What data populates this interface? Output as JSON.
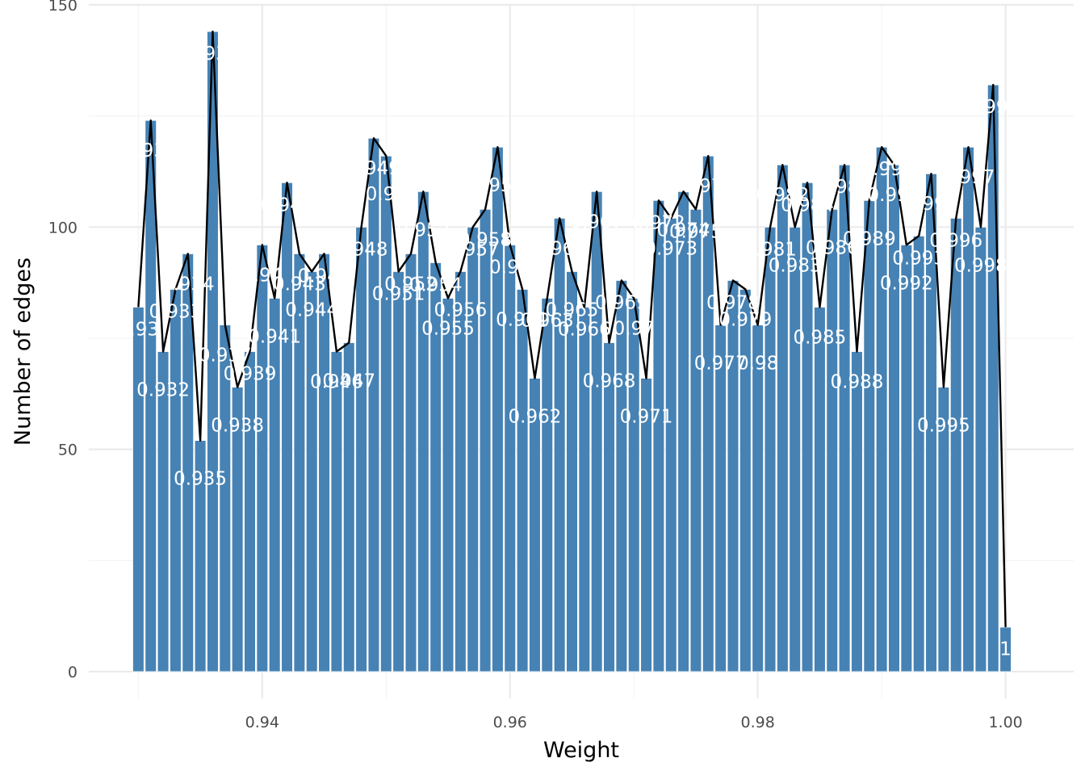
{
  "chart_data": {
    "type": "bar",
    "xlabel": "Weight",
    "ylabel": "Number of edges",
    "xlim": [
      0.926,
      1.0055
    ],
    "ylim": [
      -6,
      150
    ],
    "x_ticks": [
      0.94,
      0.96,
      0.98,
      1.0
    ],
    "x_tick_labels": [
      "0.94",
      "0.96",
      "0.98",
      "1.00"
    ],
    "y_ticks": [
      0,
      50,
      100,
      150
    ],
    "y_tick_labels": [
      "0",
      "50",
      "100",
      "150"
    ],
    "bar_color": "#4682B4",
    "line_color": "#000000",
    "grid": true,
    "legend": "none",
    "x": [
      0.93,
      0.931,
      0.932,
      0.933,
      0.934,
      0.935,
      0.936,
      0.937,
      0.938,
      0.939,
      0.94,
      0.941,
      0.942,
      0.943,
      0.944,
      0.945,
      0.946,
      0.947,
      0.948,
      0.949,
      0.95,
      0.951,
      0.952,
      0.953,
      0.954,
      0.955,
      0.956,
      0.957,
      0.958,
      0.959,
      0.96,
      0.961,
      0.962,
      0.963,
      0.964,
      0.965,
      0.966,
      0.967,
      0.968,
      0.969,
      0.97,
      0.971,
      0.972,
      0.973,
      0.974,
      0.975,
      0.976,
      0.977,
      0.978,
      0.979,
      0.98,
      0.981,
      0.982,
      0.983,
      0.984,
      0.985,
      0.986,
      0.987,
      0.988,
      0.989,
      0.99,
      0.991,
      0.992,
      0.993,
      0.994,
      0.995,
      0.996,
      0.997,
      0.998,
      0.999,
      1.0
    ],
    "values": [
      82,
      124,
      72,
      86,
      94,
      52,
      144,
      78,
      64,
      72,
      96,
      84,
      110,
      94,
      90,
      94,
      72,
      74,
      100,
      120,
      116,
      90,
      94,
      108,
      92,
      84,
      90,
      100,
      104,
      118,
      96,
      86,
      66,
      84,
      102,
      90,
      82,
      108,
      74,
      88,
      84,
      66,
      106,
      102,
      108,
      104,
      116,
      78,
      88,
      86,
      78,
      100,
      114,
      100,
      110,
      82,
      104,
      114,
      72,
      106,
      118,
      114,
      96,
      98,
      112,
      64,
      102,
      118,
      100,
      132,
      10
    ],
    "labels": [
      "0.93",
      "0.931",
      "0.932",
      "0.933",
      "0.934",
      "0.935",
      "0.936",
      "0.937",
      "0.938",
      "0.939",
      "0.94",
      "0.941",
      "0.942",
      "0.943",
      "0.944",
      "0.945",
      "0.946",
      "0.947",
      "0.948",
      "0.949",
      "0.95",
      "0.951",
      "0.952",
      "0.953",
      "0.954",
      "0.955",
      "0.956",
      "0.957",
      "0.958",
      "0.959",
      "0.96",
      "0.961",
      "0.962",
      "0.963",
      "0.964",
      "0.965",
      "0.966",
      "0.967",
      "0.968",
      "0.969",
      "0.97",
      "0.971",
      "0.972",
      "0.973",
      "0.974",
      "0.975",
      "0.976",
      "0.977",
      "0.978",
      "0.979",
      "0.98",
      "0.981",
      "0.982",
      "0.983",
      "0.984",
      "0.985",
      "0.986",
      "0.987",
      "0.988",
      "0.989",
      "0.99",
      "0.991",
      "0.992",
      "0.993",
      "0.994",
      "0.995",
      "0.996",
      "0.997",
      "0.998",
      "0.999",
      "1"
    ]
  }
}
